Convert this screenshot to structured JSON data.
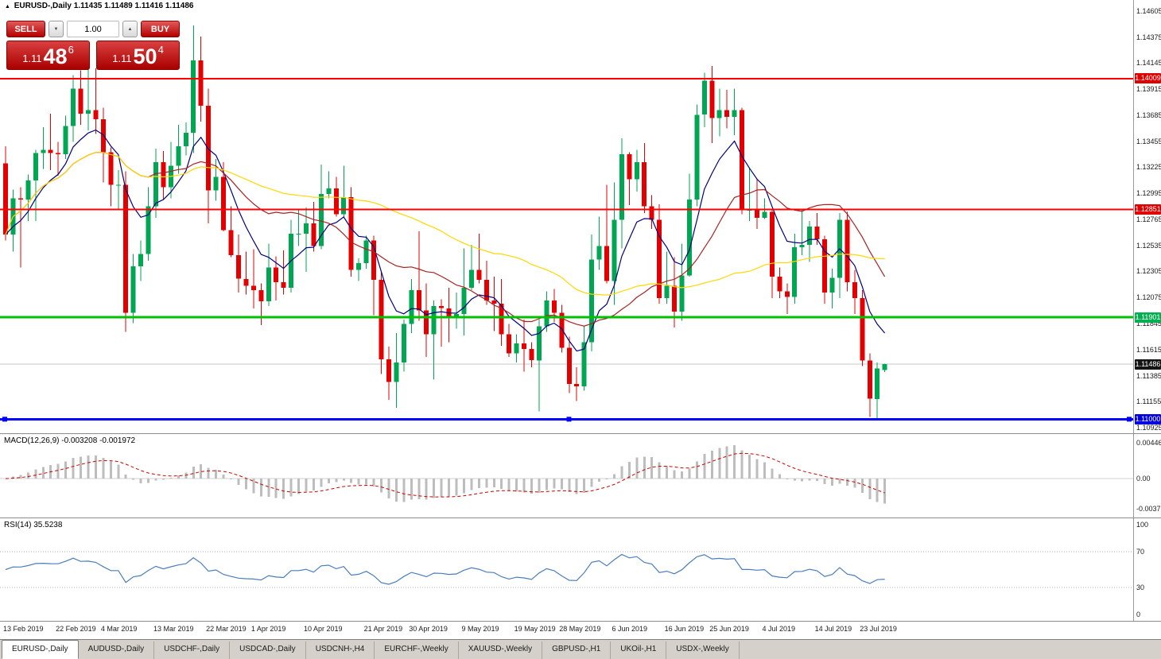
{
  "header": {
    "title_symbol": "EURUSD-,Daily",
    "title_ohlc": "1.11435 1.11489 1.11416 1.11486"
  },
  "icons": {
    "title_marker": "▲",
    "volume_decrease": "▼",
    "volume_increase": "▲"
  },
  "trade_panel": {
    "sell_label": "SELL",
    "buy_label": "BUY",
    "volume": "1.00",
    "sell_price_big": "1.11",
    "sell_price_pips": "48",
    "sell_price_sup": "6",
    "buy_price_big": "1.11",
    "buy_price_pips": "50",
    "buy_price_sup": "4"
  },
  "accent_colors": {
    "bull": "#00a651",
    "bear": "#e30000",
    "ma_fast": "#000080",
    "ma_mid": "#aa2222",
    "ma_slow": "#ffd700",
    "macd_hist": "#bdbdbd",
    "macd_signal": "#cc0000",
    "rsi_line": "#4a7ebb",
    "current_price_line": "#c9c9c9"
  },
  "chart_data": {
    "type": "candlestick",
    "symbol": "EURUSD-",
    "timeframe": "Daily",
    "price_axis": [
      "1.14605",
      "1.14375",
      "1.14145",
      "1.13915",
      "1.13685",
      "1.13455",
      "1.13225",
      "1.12995",
      "1.12765",
      "1.12535",
      "1.12305",
      "1.12075",
      "1.11845",
      "1.11615",
      "1.11385",
      "1.11155",
      "1.10925"
    ],
    "hlines": [
      {
        "price": 1.14009,
        "label": "1.14009",
        "color": "#ff0000",
        "width": 2,
        "handles": false
      },
      {
        "price": 1.12851,
        "label": "1.12851",
        "color": "#ff0000",
        "width": 2,
        "handles": false
      },
      {
        "price": 1.11901,
        "label": "1.11901",
        "color": "#00c100",
        "width": 3,
        "handles": false
      },
      {
        "price": 1.11,
        "label": "1.11000",
        "color": "#0000ff",
        "width": 3,
        "handles": true
      }
    ],
    "current_price": {
      "value": 1.11486,
      "label": "1.11486"
    },
    "moving_averages": [
      {
        "period": 8,
        "type": "ema",
        "color": "#000080"
      },
      {
        "period": 20,
        "type": "sma",
        "color": "#aa2222"
      },
      {
        "period": 50,
        "type": "sma",
        "color": "#ffd700"
      }
    ],
    "date_labels": [
      {
        "t": "13 Feb 2019",
        "i": 0
      },
      {
        "t": "22 Feb 2019",
        "i": 7
      },
      {
        "t": "4 Mar 2019",
        "i": 13
      },
      {
        "t": "13 Mar 2019",
        "i": 20
      },
      {
        "t": "22 Mar 2019",
        "i": 27
      },
      {
        "t": "1 Apr 2019",
        "i": 33
      },
      {
        "t": "10 Apr 2019",
        "i": 40
      },
      {
        "t": "21 Apr 2019",
        "i": 48
      },
      {
        "t": "30 Apr 2019",
        "i": 54
      },
      {
        "t": "9 May 2019",
        "i": 61
      },
      {
        "t": "19 May 2019",
        "i": 68
      },
      {
        "t": "28 May 2019",
        "i": 74
      },
      {
        "t": "6 Jun 2019",
        "i": 81
      },
      {
        "t": "16 Jun 2019",
        "i": 88
      },
      {
        "t": "25 Jun 2019",
        "i": 94
      },
      {
        "t": "4 Jul 2019",
        "i": 101
      },
      {
        "t": "14 Jul 2019",
        "i": 108
      },
      {
        "t": "23 Jul 2019",
        "i": 114
      }
    ],
    "candles": [
      [
        1.1326,
        1.1341,
        1.1258,
        1.1263
      ],
      [
        1.1263,
        1.1303,
        1.1248,
        1.1295
      ],
      [
        1.1295,
        1.1305,
        1.1234,
        1.1294
      ],
      [
        1.1294,
        1.1316,
        1.1275,
        1.1311
      ],
      [
        1.1311,
        1.1338,
        1.1275,
        1.1335
      ],
      [
        1.1335,
        1.1358,
        1.1321,
        1.1338
      ],
      [
        1.1338,
        1.137,
        1.132,
        1.1335
      ],
      [
        1.1335,
        1.1345,
        1.1315,
        1.1334
      ],
      [
        1.1334,
        1.1368,
        1.133,
        1.1359
      ],
      [
        1.1359,
        1.1404,
        1.1345,
        1.1392
      ],
      [
        1.1392,
        1.1408,
        1.136,
        1.137
      ],
      [
        1.137,
        1.142,
        1.1355,
        1.1373
      ],
      [
        1.1373,
        1.141,
        1.1352,
        1.1365
      ],
      [
        1.1365,
        1.1375,
        1.1309,
        1.1336
      ],
      [
        1.1336,
        1.134,
        1.1288,
        1.1307
      ],
      [
        1.1307,
        1.132,
        1.1285,
        1.1307
      ],
      [
        1.1307,
        1.1319,
        1.1177,
        1.1194
      ],
      [
        1.1194,
        1.1246,
        1.1185,
        1.1235
      ],
      [
        1.1235,
        1.1258,
        1.1222,
        1.1246
      ],
      [
        1.1246,
        1.1305,
        1.124,
        1.1288
      ],
      [
        1.1288,
        1.1339,
        1.1278,
        1.1327
      ],
      [
        1.1327,
        1.1337,
        1.1294,
        1.1305
      ],
      [
        1.1305,
        1.1345,
        1.1295,
        1.1324
      ],
      [
        1.1324,
        1.136,
        1.1317,
        1.1341
      ],
      [
        1.1341,
        1.1362,
        1.1333,
        1.1353
      ],
      [
        1.1353,
        1.1448,
        1.1335,
        1.1417
      ],
      [
        1.1417,
        1.1438,
        1.1363,
        1.1377
      ],
      [
        1.1377,
        1.1392,
        1.1273,
        1.1302
      ],
      [
        1.1302,
        1.133,
        1.1293,
        1.1314
      ],
      [
        1.1314,
        1.1327,
        1.1266,
        1.1267
      ],
      [
        1.1267,
        1.1288,
        1.1243,
        1.1245
      ],
      [
        1.1245,
        1.1263,
        1.1212,
        1.1224
      ],
      [
        1.1224,
        1.1248,
        1.121,
        1.1218
      ],
      [
        1.1218,
        1.125,
        1.1198,
        1.1214
      ],
      [
        1.1214,
        1.122,
        1.1183,
        1.1204
      ],
      [
        1.1204,
        1.1255,
        1.12,
        1.1234
      ],
      [
        1.1234,
        1.1244,
        1.1205,
        1.1221
      ],
      [
        1.1221,
        1.1249,
        1.121,
        1.1216
      ],
      [
        1.1216,
        1.1276,
        1.1212,
        1.1264
      ],
      [
        1.1264,
        1.1285,
        1.1253,
        1.1264
      ],
      [
        1.1264,
        1.1287,
        1.123,
        1.1273
      ],
      [
        1.1273,
        1.1292,
        1.1248,
        1.1253
      ],
      [
        1.1253,
        1.1325,
        1.125,
        1.1299
      ],
      [
        1.1299,
        1.1319,
        1.1295,
        1.1304
      ],
      [
        1.1304,
        1.1314,
        1.1279,
        1.1281
      ],
      [
        1.1281,
        1.1324,
        1.1278,
        1.1296
      ],
      [
        1.1296,
        1.1305,
        1.1226,
        1.1232
      ],
      [
        1.1232,
        1.1242,
        1.1222,
        1.1238
      ],
      [
        1.1238,
        1.1262,
        1.1233,
        1.1258
      ],
      [
        1.1258,
        1.1262,
        1.1192,
        1.1223
      ],
      [
        1.1223,
        1.123,
        1.114,
        1.1153
      ],
      [
        1.1153,
        1.1164,
        1.1117,
        1.1133
      ],
      [
        1.1133,
        1.1176,
        1.111,
        1.115
      ],
      [
        1.115,
        1.1188,
        1.1142,
        1.1184
      ],
      [
        1.1184,
        1.1224,
        1.1176,
        1.1214
      ],
      [
        1.1214,
        1.1266,
        1.1187,
        1.1196
      ],
      [
        1.1196,
        1.122,
        1.1155,
        1.1175
      ],
      [
        1.1175,
        1.1205,
        1.1135,
        1.12
      ],
      [
        1.12,
        1.1206,
        1.1164,
        1.1198
      ],
      [
        1.1198,
        1.1216,
        1.1168,
        1.119
      ],
      [
        1.119,
        1.1212,
        1.118,
        1.1193
      ],
      [
        1.1193,
        1.1251,
        1.1174,
        1.1216
      ],
      [
        1.1216,
        1.1254,
        1.1214,
        1.1232
      ],
      [
        1.1232,
        1.1264,
        1.122,
        1.1223
      ],
      [
        1.1223,
        1.124,
        1.1201,
        1.1205
      ],
      [
        1.1205,
        1.1226,
        1.1178,
        1.1202
      ],
      [
        1.1202,
        1.1224,
        1.1165,
        1.1175
      ],
      [
        1.1175,
        1.1184,
        1.1155,
        1.1158
      ],
      [
        1.1158,
        1.1175,
        1.115,
        1.1167
      ],
      [
        1.1167,
        1.1188,
        1.1142,
        1.1162
      ],
      [
        1.1162,
        1.1168,
        1.1146,
        1.1152
      ],
      [
        1.1152,
        1.1188,
        1.1107,
        1.1182
      ],
      [
        1.1182,
        1.1213,
        1.1177,
        1.1205
      ],
      [
        1.1205,
        1.1215,
        1.1186,
        1.1194
      ],
      [
        1.1194,
        1.1201,
        1.1159,
        1.1163
      ],
      [
        1.1163,
        1.1173,
        1.1123,
        1.1131
      ],
      [
        1.1131,
        1.1146,
        1.1116,
        1.1129
      ],
      [
        1.1129,
        1.1182,
        1.1125,
        1.1168
      ],
      [
        1.1168,
        1.1263,
        1.116,
        1.1241
      ],
      [
        1.1241,
        1.1279,
        1.1232,
        1.1253
      ],
      [
        1.1253,
        1.1307,
        1.122,
        1.1222
      ],
      [
        1.1222,
        1.1309,
        1.1201,
        1.1276
      ],
      [
        1.1276,
        1.1348,
        1.1251,
        1.1334
      ],
      [
        1.1334,
        1.1336,
        1.1289,
        1.1312
      ],
      [
        1.1312,
        1.1338,
        1.1301,
        1.1327
      ],
      [
        1.1327,
        1.1344,
        1.1282,
        1.1288
      ],
      [
        1.1288,
        1.1298,
        1.1268,
        1.1276
      ],
      [
        1.1276,
        1.129,
        1.1202,
        1.1207
      ],
      [
        1.1207,
        1.1248,
        1.1202,
        1.1218
      ],
      [
        1.1218,
        1.1243,
        1.1181,
        1.1195
      ],
      [
        1.1195,
        1.1255,
        1.1187,
        1.1227
      ],
      [
        1.1227,
        1.1317,
        1.1226,
        1.1294
      ],
      [
        1.1294,
        1.1378,
        1.1288,
        1.1369
      ],
      [
        1.1369,
        1.1406,
        1.1358,
        1.1399
      ],
      [
        1.1399,
        1.1412,
        1.1344,
        1.1366
      ],
      [
        1.1366,
        1.1392,
        1.135,
        1.1373
      ],
      [
        1.1373,
        1.1391,
        1.1357,
        1.1367
      ],
      [
        1.1367,
        1.1392,
        1.1351,
        1.1373
      ],
      [
        1.1373,
        1.1375,
        1.1281,
        1.1285
      ],
      [
        1.1285,
        1.1322,
        1.1275,
        1.1285
      ],
      [
        1.1285,
        1.1312,
        1.1268,
        1.1278
      ],
      [
        1.1278,
        1.1295,
        1.1277,
        1.1283
      ],
      [
        1.1283,
        1.1286,
        1.1207,
        1.1226
      ],
      [
        1.1226,
        1.1234,
        1.1207,
        1.1213
      ],
      [
        1.1213,
        1.122,
        1.1193,
        1.1208
      ],
      [
        1.1208,
        1.1264,
        1.1202,
        1.1252
      ],
      [
        1.1252,
        1.1285,
        1.1245,
        1.1254
      ],
      [
        1.1254,
        1.1275,
        1.1239,
        1.127
      ],
      [
        1.127,
        1.1282,
        1.1254,
        1.1259
      ],
      [
        1.1259,
        1.1262,
        1.1202,
        1.1212
      ],
      [
        1.1212,
        1.1233,
        1.1198,
        1.1225
      ],
      [
        1.1225,
        1.1282,
        1.1207,
        1.1276
      ],
      [
        1.1276,
        1.1283,
        1.1213,
        1.1221
      ],
      [
        1.1221,
        1.1232,
        1.1193,
        1.1207
      ],
      [
        1.1207,
        1.1214,
        1.1147,
        1.1152
      ],
      [
        1.1152,
        1.1158,
        1.1102,
        1.1118
      ],
      [
        1.1118,
        1.115,
        1.1101,
        1.1145
      ],
      [
        1.11435,
        1.11489,
        1.11416,
        1.11486
      ]
    ]
  },
  "macd_panel": {
    "label": "MACD(12,26,9) -0.003208 -0.001972",
    "fast": 12,
    "slow": 26,
    "signal": 9,
    "axis_labels": [
      {
        "v": 0.004465,
        "t": "0.004465"
      },
      {
        "v": 0,
        "t": "0.00"
      },
      {
        "v": -0.003716,
        "t": "-0.003716"
      }
    ]
  },
  "rsi_panel": {
    "label": "RSI(14) 35.5238",
    "period": 14,
    "last_value": 35.5238,
    "levels": [
      70,
      30
    ],
    "axis_labels": [
      {
        "v": 100,
        "t": "100"
      },
      {
        "v": 70,
        "t": "70"
      },
      {
        "v": 30,
        "t": "30"
      },
      {
        "v": 0,
        "t": "0"
      }
    ]
  },
  "tabs": [
    {
      "label": "EURUSD-,Daily",
      "active": true
    },
    {
      "label": "AUDUSD-,Daily",
      "active": false
    },
    {
      "label": "USDCHF-,Daily",
      "active": false
    },
    {
      "label": "USDCAD-,Daily",
      "active": false
    },
    {
      "label": "USDCNH-,H4",
      "active": false
    },
    {
      "label": "EURCHF-,Weekly",
      "active": false
    },
    {
      "label": "XAUUSD-,Weekly",
      "active": false
    },
    {
      "label": "GBPUSD-,H1",
      "active": false
    },
    {
      "label": "UKOil-,H1",
      "active": false
    },
    {
      "label": "USDX-,Weekly",
      "active": false
    }
  ]
}
